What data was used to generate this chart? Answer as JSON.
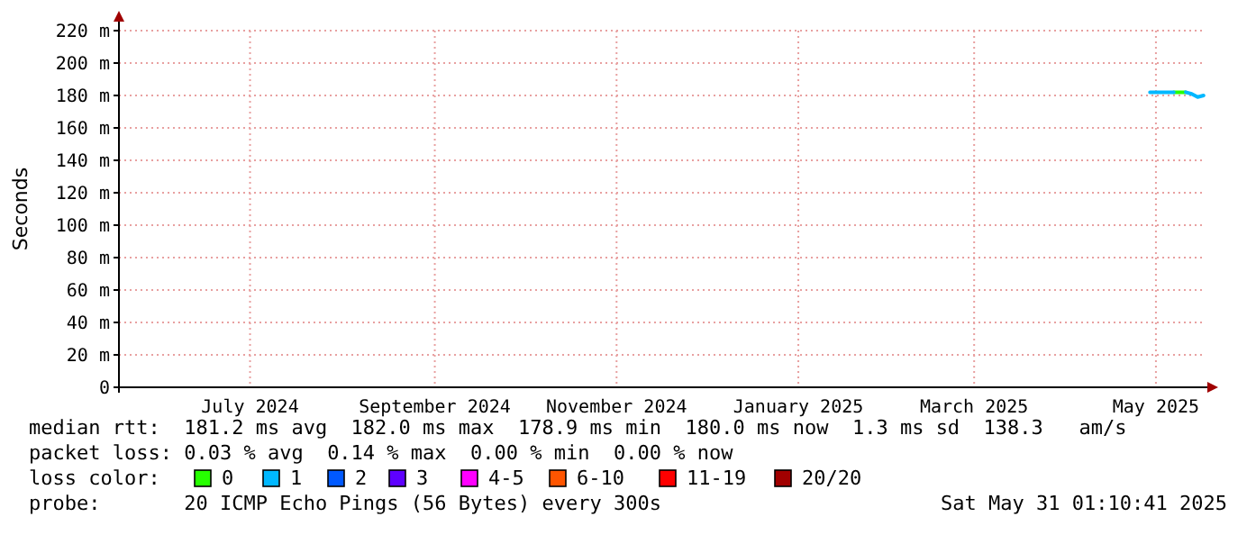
{
  "chart_data": {
    "type": "line",
    "ylabel": "Seconds",
    "x": [
      "2025-05-13",
      "2025-05-15",
      "2025-05-17",
      "2025-05-19",
      "2025-05-21",
      "2025-05-23",
      "2025-05-25",
      "2025-05-27",
      "2025-05-29",
      "2025-05-31"
    ],
    "series": [
      {
        "name": "0",
        "color": "#26ff00",
        "values": [
          null,
          null,
          null,
          null,
          182,
          182,
          182,
          null,
          null,
          null
        ]
      },
      {
        "name": "1",
        "color": "#00b8ff",
        "values": [
          182,
          182,
          182,
          182,
          182,
          null,
          182,
          181,
          179,
          180
        ]
      },
      {
        "name": "2",
        "color": "#0059ff",
        "values": [
          null,
          null,
          null,
          null,
          null,
          null,
          null,
          null,
          null,
          null
        ]
      },
      {
        "name": "3",
        "color": "#5e00ff",
        "values": [
          null,
          null,
          null,
          null,
          null,
          null,
          null,
          null,
          null,
          null
        ]
      },
      {
        "name": "4-5",
        "color": "#ff00ff",
        "values": [
          null,
          null,
          null,
          null,
          null,
          null,
          null,
          null,
          null,
          null
        ]
      },
      {
        "name": "6-10",
        "color": "#ff5500",
        "values": [
          null,
          null,
          null,
          null,
          null,
          null,
          null,
          null,
          null,
          null
        ]
      },
      {
        "name": "11-19",
        "color": "#ff0000",
        "values": [
          null,
          null,
          null,
          null,
          null,
          null,
          null,
          null,
          null,
          null
        ]
      },
      {
        "name": "20/20",
        "color": "#a10000",
        "values": [
          null,
          null,
          null,
          null,
          null,
          null,
          null,
          null,
          null,
          null
        ]
      }
    ],
    "legend": "bottom",
    "legend_title": "loss color:",
    "xlim": [
      "2024-06-01",
      "2025-05-31T01:10"
    ],
    "xticks": [
      {
        "value": "2024-07-15",
        "label": "July 2024"
      },
      {
        "value": "2024-09-15",
        "label": "September 2024"
      },
      {
        "value": "2024-11-15",
        "label": "November 2024"
      },
      {
        "value": "2025-01-15",
        "label": "January 2025"
      },
      {
        "value": "2025-03-15",
        "label": "March 2025"
      },
      {
        "value": "2025-05-15",
        "label": "May 2025"
      }
    ],
    "ylim": [
      0,
      220
    ],
    "yticks": [
      0,
      {
        "value": 20,
        "label": "20 m"
      },
      {
        "value": 40,
        "label": "40 m"
      },
      {
        "value": 60,
        "label": "60 m"
      },
      {
        "value": 80,
        "label": "80 m"
      },
      {
        "value": 100,
        "label": "100 m"
      },
      {
        "value": 120,
        "label": "120 m"
      },
      {
        "value": 140,
        "label": "140 m"
      },
      {
        "value": 160,
        "label": "160 m"
      },
      {
        "value": 180,
        "label": "180 m"
      },
      {
        "value": 200,
        "label": "200 m"
      },
      {
        "value": 220,
        "label": "220 m"
      }
    ],
    "grid": true,
    "marker": "none",
    "line_style": "solid",
    "annotations": [
      "median rtt:  181.2 ms avg  182.0 ms max  178.9 ms min  180.0 ms now  1.3 ms sd  138.3   am/s",
      "packet loss: 0.03 % avg  0.14 % max  0.00 % min  0.00 % now",
      "probe:       20 ICMP Echo Pings (56 Bytes) every 300s",
      "Sat May 31 01:10:41 2025"
    ]
  }
}
